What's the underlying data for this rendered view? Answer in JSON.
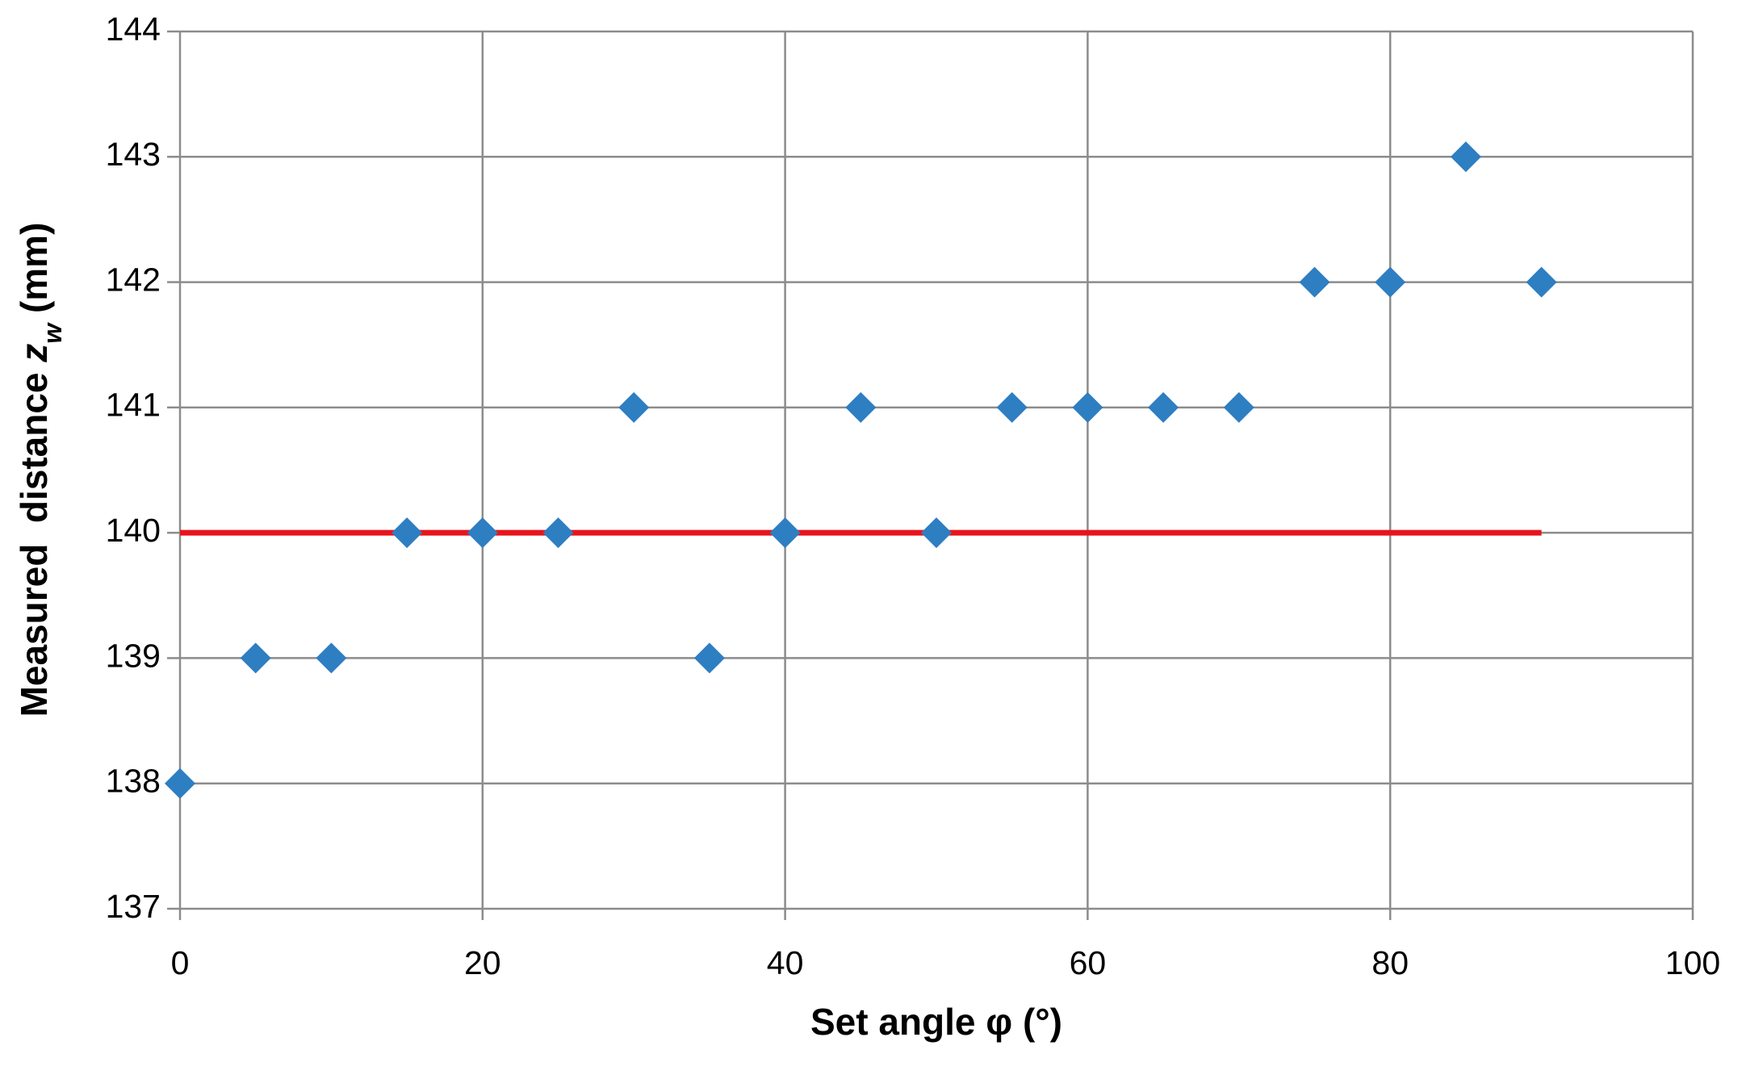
{
  "chart_data": {
    "type": "scatter",
    "xlabel": "Set angle  φ (°)",
    "ylabel": {
      "text": "Measured  distance ",
      "var": "z",
      "sub": "w",
      "unit": " (mm)"
    },
    "xlim": [
      0,
      100
    ],
    "xticks": [
      0,
      20,
      40,
      60,
      80,
      100
    ],
    "ylim": [
      137,
      144
    ],
    "yticks": [
      137,
      138,
      139,
      140,
      141,
      142,
      143,
      144
    ],
    "grid": true,
    "series": [
      {
        "type": "scatter",
        "color": "#2e7ec2",
        "marker": "diamond",
        "x": [
          0,
          5,
          10,
          15,
          20,
          25,
          30,
          35,
          40,
          45,
          50,
          55,
          60,
          65,
          70,
          75,
          80,
          85,
          90
        ],
        "values": [
          138,
          139,
          139,
          140,
          140,
          140,
          141,
          139,
          140,
          141,
          140,
          141,
          141,
          141,
          141,
          142,
          142,
          143,
          142
        ]
      },
      {
        "type": "line",
        "color": "#e8141b",
        "x": [
          0,
          90
        ],
        "values": [
          140,
          140
        ]
      }
    ]
  }
}
